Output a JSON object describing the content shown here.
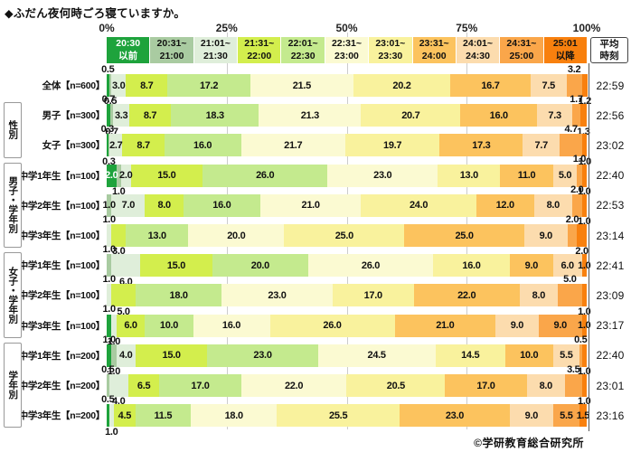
{
  "footer": "©学研教育総合研究所",
  "chart_data": {
    "type": "bar",
    "subtype": "horizontal-stacked-100percent",
    "title": "◆ふだん夜何時ごろ寝ていますか。",
    "unit": "%",
    "avg_header": "平均時刻",
    "avg_header_lines": [
      "平均",
      "時刻"
    ],
    "x_axis": {
      "ticks": [
        "0%",
        "25%",
        "50%",
        "75%",
        "100%"
      ],
      "tick_pos": [
        0,
        25,
        50,
        75,
        100
      ],
      "range": [
        0,
        100
      ],
      "gridlines_at": [
        25,
        50,
        75
      ]
    },
    "categories": [
      {
        "range": "20:30以前",
        "line1": "20:30",
        "line2": "以前",
        "color": "#1ea33c",
        "text_color": "#ffffff"
      },
      {
        "range": "20:31~21:00",
        "line1": "20:31~",
        "line2": "21:00",
        "color": "#a9cba1",
        "text_color": "#111111"
      },
      {
        "range": "21:01~21:30",
        "line1": "21:01~",
        "line2": "21:30",
        "color": "#dfeeda",
        "text_color": "#111111"
      },
      {
        "range": "21:31~22:00",
        "line1": "21:31~",
        "line2": "22:00",
        "color": "#d3ee4d",
        "text_color": "#111111"
      },
      {
        "range": "22:01~22:30",
        "line1": "22:01~",
        "line2": "22:30",
        "color": "#c4ea8e",
        "text_color": "#111111"
      },
      {
        "range": "22:31~23:00",
        "line1": "22:31~",
        "line2": "23:00",
        "color": "#fbfad2",
        "text_color": "#111111"
      },
      {
        "range": "23:01~23:30",
        "line1": "23:01~",
        "line2": "23:30",
        "color": "#f9f29d",
        "text_color": "#111111"
      },
      {
        "range": "23:31~24:00",
        "line1": "23:31~",
        "line2": "24:00",
        "color": "#fcc35e",
        "text_color": "#111111"
      },
      {
        "range": "24:01~24:30",
        "line1": "24:01~",
        "line2": "24:30",
        "color": "#fcdcae",
        "text_color": "#111111"
      },
      {
        "range": "24:31~25:00",
        "line1": "24:31~",
        "line2": "25:00",
        "color": "#faa64a",
        "text_color": "#111111"
      },
      {
        "range": "25:01以降",
        "line1": "25:01",
        "line2": "以降",
        "color": "#f8800e",
        "text_color": "#111111"
      }
    ],
    "groups": [
      {
        "group": "",
        "rows": [
          {
            "label": "全体【n=600】",
            "avg": "22:59",
            "values": [
              0.5,
              0.5,
              3.0,
              8.7,
              17.2,
              21.5,
              20.2,
              16.7,
              7.5,
              3.2,
              1.2
            ],
            "label_pos": [
              "u",
              "d",
              "i",
              "i",
              "i",
              "i",
              "i",
              "i",
              "i",
              "u",
              "d"
            ]
          }
        ]
      },
      {
        "group": "性別",
        "rows": [
          {
            "label": "男子【n=300】",
            "avg": "22:56",
            "values": [
              0.7,
              0.7,
              3.3,
              8.7,
              18.3,
              21.3,
              20.7,
              16.0,
              7.3,
              1.7,
              1.3
            ],
            "label_pos": [
              "u",
              "d",
              "i",
              "i",
              "i",
              "i",
              "i",
              "i",
              "i",
              "u",
              "d"
            ]
          },
          {
            "label": "女子【n=300】",
            "avg": "23:02",
            "values": [
              0.3,
              0.3,
              2.7,
              8.7,
              16.0,
              21.7,
              19.7,
              17.3,
              7.7,
              4.7,
              1.0
            ],
            "label_pos": [
              "u",
              "d",
              "i",
              "i",
              "i",
              "i",
              "i",
              "i",
              "i",
              "u",
              "d"
            ]
          }
        ]
      },
      {
        "group": "男子・学年別",
        "rows": [
          {
            "label": "中学1年生【n=100】",
            "avg": "22:40",
            "values": [
              2.0,
              1.0,
              2.0,
              15.0,
              26.0,
              23.0,
              13.0,
              11.0,
              5.0,
              1.0,
              1.0
            ],
            "label_pos": [
              "iw",
              "d",
              "i",
              "i",
              "i",
              "i",
              "i",
              "i",
              "i",
              "u",
              "d"
            ]
          },
          {
            "label": "中学2年生【n=100】",
            "avg": "22:53",
            "values": [
              0,
              1.0,
              7.0,
              8.0,
              16.0,
              21.0,
              24.0,
              12.0,
              8.0,
              2.0,
              1.0
            ],
            "label_pos": [
              "",
              "i",
              "i",
              "i",
              "i",
              "i",
              "i",
              "i",
              "i",
              "u",
              "d"
            ]
          },
          {
            "label": "中学3年生【n=100】",
            "avg": "23:14",
            "values": [
              0,
              0,
              1.0,
              3.0,
              13.0,
              20.0,
              25.0,
              25.0,
              9.0,
              2.0,
              2.0
            ],
            "label_pos": [
              "",
              "",
              "u",
              "d",
              "i",
              "i",
              "i",
              "i",
              "i",
              "u",
              "d"
            ]
          }
        ]
      },
      {
        "group": "女子・学年別",
        "rows": [
          {
            "label": "中学1年生【n=100】",
            "avg": "22:41",
            "values": [
              0,
              1.0,
              6.0,
              15.0,
              20.0,
              26.0,
              16.0,
              9.0,
              6.0,
              0,
              1.0
            ],
            "label_pos": [
              "",
              "u",
              "d",
              "i",
              "i",
              "i",
              "i",
              "i",
              "i",
              "",
              "i"
            ]
          },
          {
            "label": "中学2年生【n=100】",
            "avg": "23:09",
            "values": [
              0,
              0,
              1.0,
              5.0,
              18.0,
              23.0,
              17.0,
              22.0,
              8.0,
              5.0,
              1.0
            ],
            "label_pos": [
              "",
              "",
              "u",
              "d",
              "i",
              "i",
              "i",
              "i",
              "i",
              "u",
              "d"
            ]
          },
          {
            "label": "中学3年生【n=100】",
            "avg": "23:17",
            "values": [
              1.0,
              0,
              1.0,
              6.0,
              10.0,
              16.0,
              26.0,
              21.0,
              9.0,
              9.0,
              1.0
            ],
            "label_pos": [
              "u",
              "",
              "d",
              "i",
              "i",
              "i",
              "i",
              "i",
              "i",
              "i",
              "i"
            ]
          }
        ]
      },
      {
        "group": "学年別",
        "rows": [
          {
            "label": "中学1年生【n=200】",
            "avg": "22:40",
            "values": [
              1.0,
              1.0,
              4.0,
              15.0,
              23.0,
              24.5,
              14.5,
              10.0,
              5.5,
              0.5,
              1.0
            ],
            "label_pos": [
              "u",
              "d",
              "i",
              "i",
              "i",
              "i",
              "i",
              "i",
              "i",
              "u",
              "d"
            ]
          },
          {
            "label": "中学2年生【n=200】",
            "avg": "23:01",
            "values": [
              0,
              0.5,
              4.0,
              6.5,
              17.0,
              22.0,
              20.5,
              17.0,
              8.0,
              3.5,
              1.0
            ],
            "label_pos": [
              "",
              "u",
              "d",
              "i",
              "i",
              "i",
              "i",
              "i",
              "i",
              "u",
              "d"
            ]
          },
          {
            "label": "中学3年生【n=200】",
            "avg": "23:16",
            "values": [
              0.5,
              0,
              1.0,
              4.5,
              11.5,
              18.0,
              25.5,
              23.0,
              9.0,
              5.5,
              1.5
            ],
            "label_pos": [
              "u",
              "",
              "d",
              "i",
              "i",
              "i",
              "i",
              "i",
              "i",
              "i",
              "i"
            ]
          }
        ]
      }
    ]
  }
}
